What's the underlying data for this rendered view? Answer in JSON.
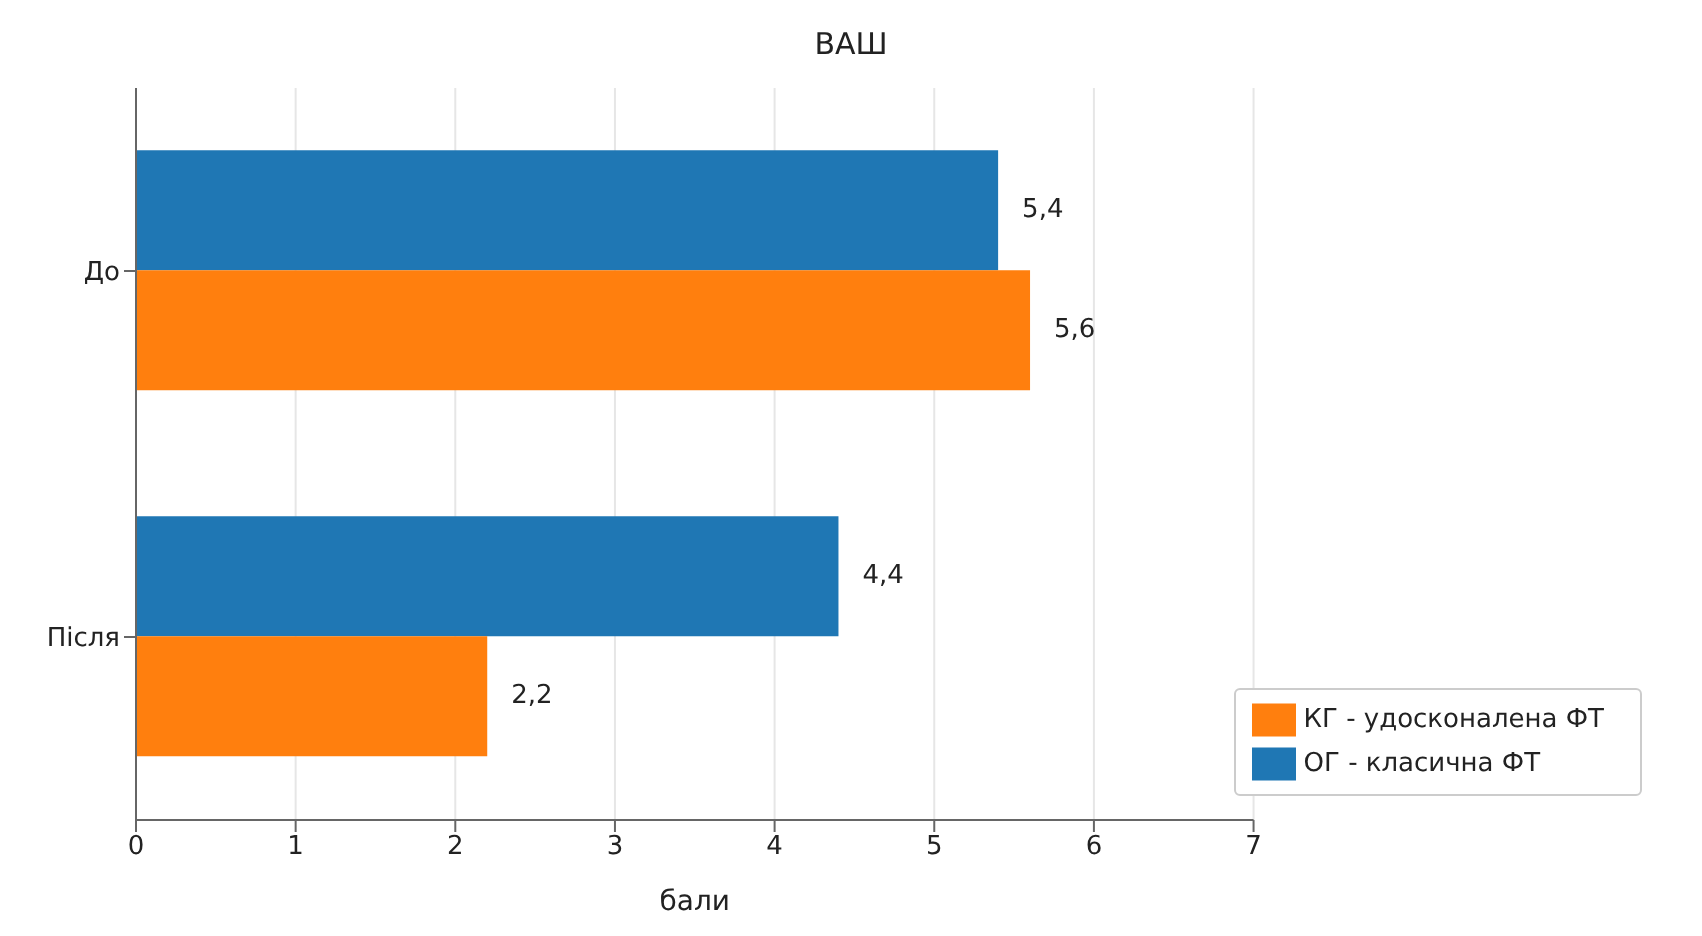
{
  "chart_data": {
    "type": "bar",
    "orientation": "horizontal",
    "title": "ВАШ",
    "xlabel": "бали",
    "categories": [
      "До",
      "Після"
    ],
    "series": [
      {
        "name": "ОГ - класична ФТ",
        "color": "#1f77b4",
        "values": [
          5.4,
          4.4
        ],
        "value_labels": [
          "5,4",
          "4,4"
        ]
      },
      {
        "name": "КГ - удосконалена ФТ",
        "color": "#ff7f0e",
        "values": [
          5.6,
          2.2
        ],
        "value_labels": [
          "5,6",
          "2,2"
        ]
      }
    ],
    "xlim": [
      0,
      7
    ],
    "xticks": [
      0,
      1,
      2,
      3,
      4,
      5,
      6,
      7
    ],
    "grid": "x",
    "legend": "bottom right"
  }
}
